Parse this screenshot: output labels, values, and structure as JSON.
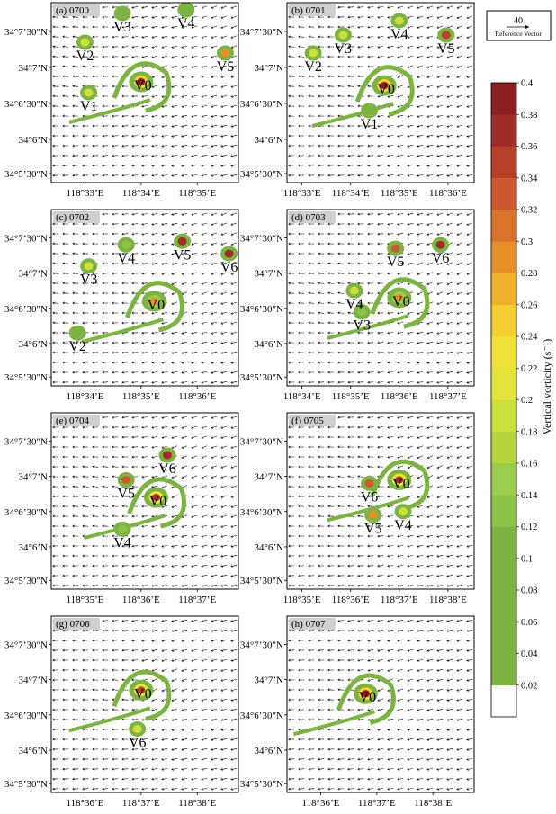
{
  "colorbar": {
    "label": "Vertical vorticity (s⁻¹)",
    "ticks": [
      "0.02",
      "0.04",
      "0.06",
      "0.08",
      "0.1",
      "0.12",
      "0.14",
      "0.16",
      "0.18",
      "0.2",
      "0.22",
      "0.24",
      "0.26",
      "0.28",
      "0.3",
      "0.32",
      "0.34",
      "0.36",
      "0.38",
      "0.4"
    ],
    "colors": [
      "#ffffff",
      "#7cb342",
      "#7cb342",
      "#7cb342",
      "#7cb342",
      "#7cb342",
      "#8bc34a",
      "#9ccc4c",
      "#b5d53f",
      "#cde03a",
      "#e1e437",
      "#f0e135",
      "#f3cf2f",
      "#f0b22a",
      "#e6902a",
      "#d9732c",
      "#cc5a2e",
      "#b8412b",
      "#a02e28",
      "#8a2020"
    ]
  },
  "reference_vector": {
    "value": "40",
    "label": "Reference Vector"
  },
  "chart_data": {
    "type": "vector-vorticity-panels",
    "y_ticks": [
      "34°7’30″N",
      "34°7’N",
      "34°6’30″N",
      "34°6’N",
      "34°5’30″N"
    ],
    "panels": [
      {
        "id": "a",
        "label": "(a) 0700",
        "xticks": [
          "118°33’E",
          "118°34’E",
          "118°35’E"
        ],
        "vortices": [
          {
            "name": "V0",
            "vx": 0.48,
            "vy": 0.44,
            "core": 0.4
          },
          {
            "name": "V1",
            "vx": 0.2,
            "vy": 0.5,
            "core": 0.2
          },
          {
            "name": "V2",
            "vx": 0.18,
            "vy": 0.22,
            "core": 0.2
          },
          {
            "name": "V3",
            "vx": 0.38,
            "vy": 0.06,
            "core": 0.12
          },
          {
            "name": "V4",
            "vx": 0.72,
            "vy": 0.04,
            "core": 0.12
          },
          {
            "name": "V5",
            "vx": 0.93,
            "vy": 0.28,
            "core": 0.3
          }
        ]
      },
      {
        "id": "b",
        "label": "(b) 0701",
        "xticks": [
          "118°33’E",
          "118°34’E",
          "118°35’E",
          "118°36’E"
        ],
        "vortices": [
          {
            "name": "V0",
            "vx": 0.52,
            "vy": 0.46,
            "core": 0.4
          },
          {
            "name": "V1",
            "vx": 0.44,
            "vy": 0.6,
            "core": 0.12
          },
          {
            "name": "V2",
            "vx": 0.14,
            "vy": 0.28,
            "core": 0.2
          },
          {
            "name": "V3",
            "vx": 0.3,
            "vy": 0.18,
            "core": 0.2
          },
          {
            "name": "V4",
            "vx": 0.6,
            "vy": 0.1,
            "core": 0.2
          },
          {
            "name": "V5",
            "vx": 0.85,
            "vy": 0.18,
            "core": 0.36
          }
        ]
      },
      {
        "id": "c",
        "label": "(c) 0702",
        "xticks": [
          "118°34’E",
          "118°35’E",
          "118°36’E"
        ],
        "vortices": [
          {
            "name": "V0",
            "vx": 0.55,
            "vy": 0.52,
            "core": 0.3
          },
          {
            "name": "V2",
            "vx": 0.14,
            "vy": 0.7,
            "core": 0.12
          },
          {
            "name": "V3",
            "vx": 0.2,
            "vy": 0.32,
            "core": 0.2
          },
          {
            "name": "V4",
            "vx": 0.4,
            "vy": 0.2,
            "core": 0.14
          },
          {
            "name": "V5",
            "vx": 0.7,
            "vy": 0.18,
            "core": 0.38
          },
          {
            "name": "V6",
            "vx": 0.95,
            "vy": 0.25,
            "core": 0.38
          }
        ]
      },
      {
        "id": "d",
        "label": "(d) 0703",
        "xticks": [
          "118°34’E",
          "118°35’E",
          "118°36’E",
          "118°37’E"
        ],
        "vortices": [
          {
            "name": "V0",
            "vx": 0.6,
            "vy": 0.5,
            "core": 0.3
          },
          {
            "name": "V3",
            "vx": 0.4,
            "vy": 0.58,
            "core": 0.14
          },
          {
            "name": "V4",
            "vx": 0.36,
            "vy": 0.46,
            "core": 0.2
          },
          {
            "name": "V5",
            "vx": 0.58,
            "vy": 0.22,
            "core": 0.34
          },
          {
            "name": "V6",
            "vx": 0.82,
            "vy": 0.2,
            "core": 0.38
          }
        ]
      },
      {
        "id": "e",
        "label": "(e) 0704",
        "xticks": [
          "118°35’E",
          "118°36’E",
          "118°37’E"
        ],
        "vortices": [
          {
            "name": "V0",
            "vx": 0.56,
            "vy": 0.48,
            "core": 0.38
          },
          {
            "name": "V4",
            "vx": 0.38,
            "vy": 0.66,
            "core": 0.14
          },
          {
            "name": "V5",
            "vx": 0.4,
            "vy": 0.38,
            "core": 0.34
          },
          {
            "name": "V6",
            "vx": 0.62,
            "vy": 0.24,
            "core": 0.38
          }
        ]
      },
      {
        "id": "f",
        "label": "(f) 0705",
        "xticks": [
          "118°35’E",
          "118°36’E",
          "118°37’E",
          "118°38’E"
        ],
        "vortices": [
          {
            "name": "V0",
            "vx": 0.6,
            "vy": 0.38,
            "core": 0.38
          },
          {
            "name": "V4",
            "vx": 0.62,
            "vy": 0.56,
            "core": 0.2
          },
          {
            "name": "V5",
            "vx": 0.46,
            "vy": 0.58,
            "core": 0.3
          },
          {
            "name": "V6",
            "vx": 0.44,
            "vy": 0.4,
            "core": 0.34
          }
        ]
      },
      {
        "id": "g",
        "label": "(g) 0706",
        "xticks": [
          "118°36’E",
          "118°37’E",
          "118°38’E"
        ],
        "vortices": [
          {
            "name": "V0",
            "vx": 0.48,
            "vy": 0.42,
            "core": 0.36
          },
          {
            "name": "V6",
            "vx": 0.46,
            "vy": 0.64,
            "core": 0.2
          }
        ]
      },
      {
        "id": "h",
        "label": "(h) 0707",
        "xticks": [
          "118°36’E",
          "118°37’E",
          "118°38’E"
        ],
        "vortices": [
          {
            "name": "V0",
            "vx": 0.42,
            "vy": 0.44,
            "core": 0.4
          }
        ]
      }
    ]
  }
}
